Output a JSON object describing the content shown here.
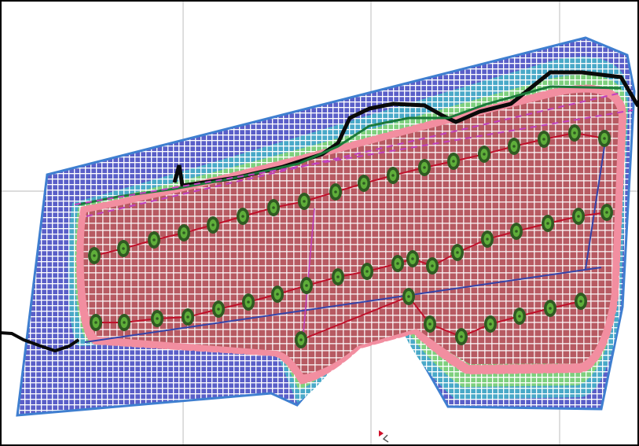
{
  "colors": {
    "frame": "#000000",
    "grid": "#c8c8c8",
    "outer_band": "#5a5fc8",
    "outer_border": "#3f7fd0",
    "cyan_band": "#49a9c8",
    "green_band": "#7ed07e",
    "pink_band": "#f28ea0",
    "inner_fill": "#b75a62",
    "hatch": "#ffffff",
    "terrain": "#0a0a0a",
    "terrain_green": "#1b7a3a",
    "marker_outer": "#2f5a22",
    "marker_inner": "#5fae3a",
    "row_line": "#c0102a",
    "dash_magenta": "#c040c0",
    "diag_blue": "#3344aa",
    "cursor": "#d0102a"
  },
  "icons": {
    "cursor": "cursor-marker-icon",
    "marker": "well-marker-icon"
  },
  "rows": [
    [
      [
        120,
        325
      ],
      [
        157,
        316
      ],
      [
        196,
        305
      ],
      [
        234,
        296
      ],
      [
        271,
        286
      ],
      [
        309,
        275
      ],
      [
        348,
        264
      ],
      [
        387,
        256
      ],
      [
        427,
        244
      ],
      [
        463,
        233
      ],
      [
        500,
        223
      ],
      [
        540,
        213
      ],
      [
        577,
        205
      ],
      [
        616,
        196
      ],
      [
        654,
        186
      ],
      [
        692,
        177
      ],
      [
        731,
        169
      ],
      [
        769,
        176
      ]
    ],
    [
      [
        122,
        410
      ],
      [
        158,
        410
      ],
      [
        200,
        405
      ],
      [
        239,
        403
      ],
      [
        278,
        393
      ],
      [
        316,
        384
      ],
      [
        353,
        374
      ],
      [
        390,
        363
      ],
      [
        430,
        352
      ],
      [
        467,
        345
      ],
      [
        506,
        335
      ],
      [
        525,
        329
      ],
      [
        550,
        338
      ],
      [
        582,
        321
      ],
      [
        620,
        304
      ],
      [
        657,
        294
      ],
      [
        697,
        284
      ],
      [
        736,
        275
      ],
      [
        772,
        270
      ]
    ],
    [
      [
        383,
        432
      ],
      [
        520,
        377
      ],
      [
        547,
        412
      ],
      [
        587,
        428
      ],
      [
        624,
        412
      ],
      [
        661,
        402
      ],
      [
        700,
        392
      ],
      [
        739,
        383
      ]
    ]
  ]
}
